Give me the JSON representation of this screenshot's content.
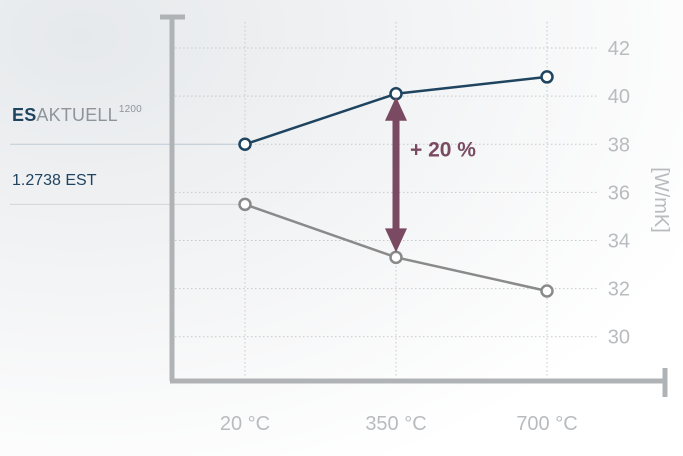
{
  "chart_data": {
    "type": "line",
    "categories": [
      "20 °C",
      "350 °C",
      "700 °C"
    ],
    "series": [
      {
        "name": "ESAKTUELL1200",
        "name_bold": "ES",
        "name_rest": "AKTUELL",
        "name_sup": "1200",
        "values": [
          38.0,
          40.1,
          40.8
        ],
        "color": "#1f4460"
      },
      {
        "name": "1.2738 EST",
        "values": [
          35.5,
          33.3,
          31.9
        ],
        "color": "#8a8a8a"
      }
    ],
    "yticks": [
      30,
      32,
      34,
      36,
      38,
      40,
      42
    ],
    "ylabel": "[W/mK]",
    "ylim": [
      28.2,
      43.0
    ],
    "grid": true,
    "annotation": {
      "text": "+ 20 %",
      "category": "350 °C",
      "from": 33.3,
      "to": 40.1,
      "color": "#7a4a62"
    },
    "axis_color": "#b0b3b6",
    "grid_color": "#c6c9cc"
  }
}
